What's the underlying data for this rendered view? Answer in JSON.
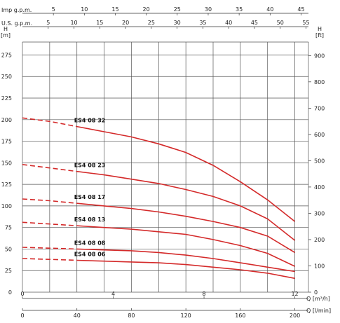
{
  "chart_data": {
    "type": "line",
    "xlabel": "Q [l/min]",
    "xlabel_secondary": "Q [m³/h]",
    "ylabel": "H [m]",
    "ylabel_secondary": "H [ft]",
    "top_axis_1_label": "Imp g.p.m.",
    "top_axis_2_label": "U.S. g.p.m.",
    "x_ticks": [
      "0",
      "40",
      "80",
      "120",
      "160",
      "200"
    ],
    "x_ticks_m3h": [
      "0",
      "4",
      "8",
      "12"
    ],
    "x_ticks_imp": [
      "5",
      "10",
      "15",
      "20",
      "25",
      "30",
      "35",
      "40",
      "45"
    ],
    "x_ticks_us": [
      "5",
      "10",
      "15",
      "20",
      "25",
      "30",
      "35",
      "40",
      "45",
      "50",
      "55"
    ],
    "y_ticks": [
      "0",
      "25",
      "50",
      "75",
      "100",
      "125",
      "150",
      "175",
      "200",
      "225",
      "250",
      "275"
    ],
    "y_ticks_ft": [
      "0",
      "100",
      "200",
      "300",
      "400",
      "500",
      "600",
      "700",
      "800",
      "900"
    ],
    "xlim": [
      0,
      210
    ],
    "ylim": [
      0,
      290
    ],
    "grid": true,
    "line_color": "#d42a2a",
    "series": [
      {
        "name": "ES4 08 32",
        "dash_end_x": 40,
        "x": [
          0,
          20,
          40,
          60,
          80,
          100,
          120,
          140,
          160,
          180,
          200
        ],
        "y": [
          202,
          198,
          192,
          186,
          180,
          172,
          162,
          147,
          128,
          107,
          82
        ]
      },
      {
        "name": "ES4 08 23",
        "dash_end_x": 40,
        "x": [
          0,
          20,
          40,
          60,
          80,
          100,
          120,
          140,
          160,
          180,
          200
        ],
        "y": [
          148,
          144,
          140,
          136,
          131,
          126,
          119,
          111,
          100,
          85,
          60
        ]
      },
      {
        "name": "ES4 08 17",
        "dash_end_x": 40,
        "x": [
          0,
          20,
          40,
          60,
          80,
          100,
          120,
          140,
          160,
          180,
          200
        ],
        "y": [
          108,
          106,
          103,
          100,
          97,
          93,
          88,
          82,
          75,
          65,
          46
        ]
      },
      {
        "name": "ES4 08 13",
        "dash_end_x": 40,
        "x": [
          0,
          20,
          40,
          60,
          80,
          100,
          120,
          140,
          160,
          180,
          200
        ],
        "y": [
          81,
          79,
          77,
          75,
          73,
          70,
          67,
          61,
          54,
          45,
          30
        ]
      },
      {
        "name": "ES4 08 08",
        "dash_end_x": 40,
        "x": [
          0,
          20,
          40,
          60,
          80,
          100,
          120,
          140,
          160,
          180,
          200
        ],
        "y": [
          52,
          51,
          50,
          49,
          48,
          46,
          43,
          39,
          34,
          29,
          24
        ]
      },
      {
        "name": "ES4 08 06",
        "dash_end_x": 40,
        "x": [
          0,
          20,
          40,
          60,
          80,
          100,
          120,
          140,
          160,
          180,
          200
        ],
        "y": [
          39,
          38,
          37,
          36,
          35,
          34,
          32,
          29,
          26,
          22,
          16
        ]
      }
    ]
  }
}
